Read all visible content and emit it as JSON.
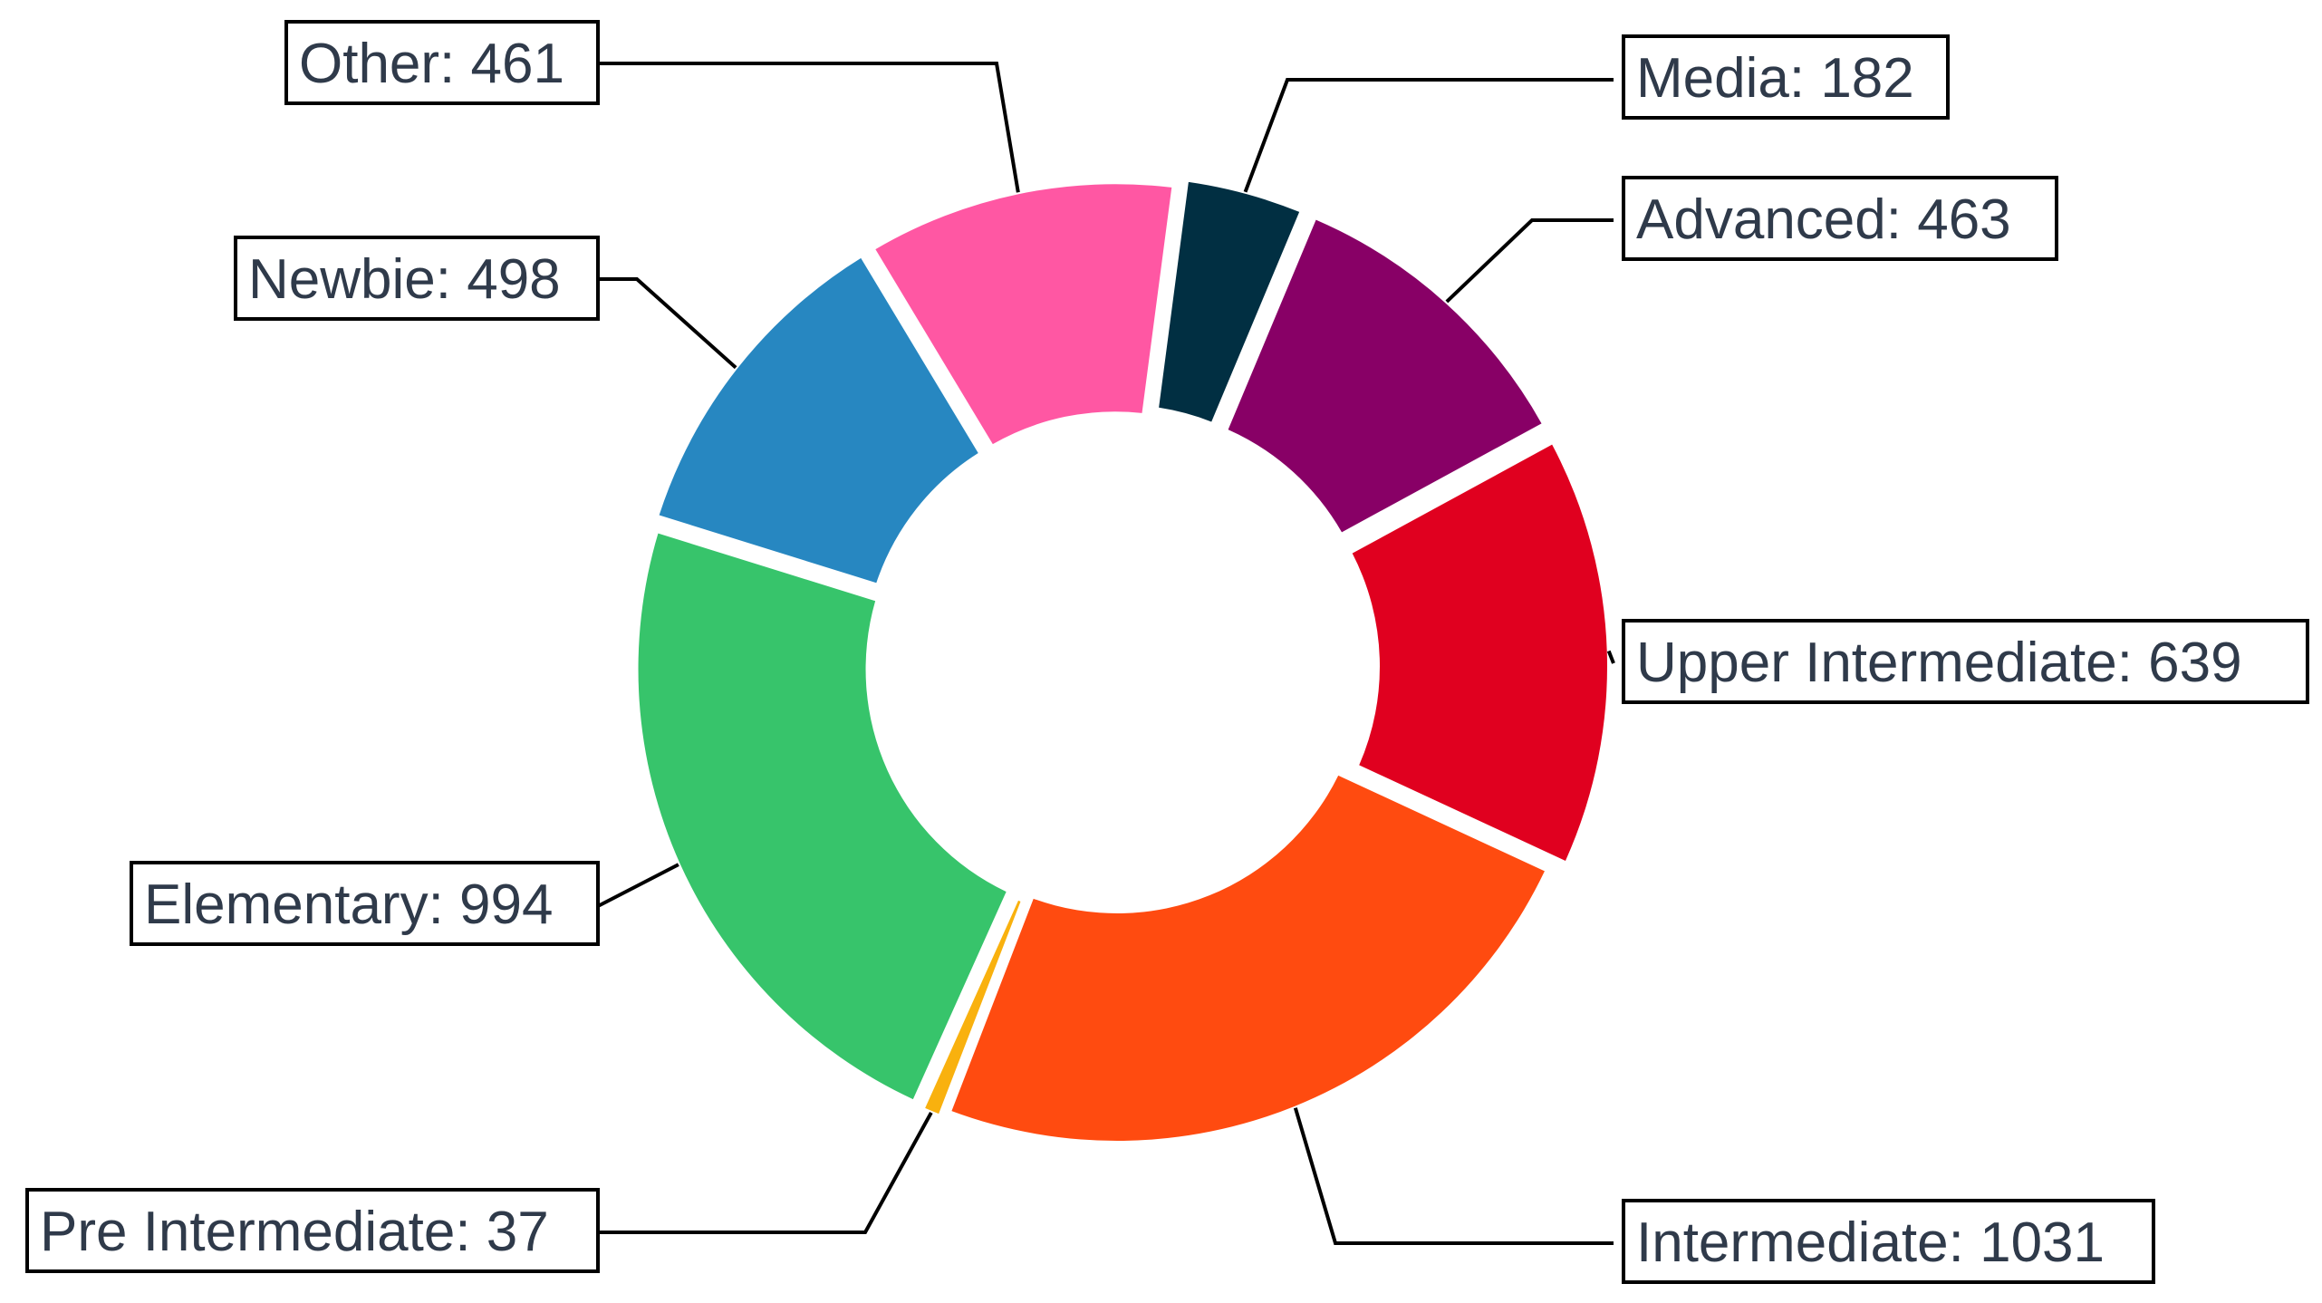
{
  "chart_data": {
    "type": "pie",
    "donut": true,
    "title": "",
    "legend": "none",
    "slices": [
      {
        "name": "Media",
        "value": 182,
        "label": "Media: 182",
        "color": "#012f42"
      },
      {
        "name": "Advanced",
        "value": 463,
        "label": "Advanced: 463",
        "color": "#880066"
      },
      {
        "name": "Upper Intermediate",
        "value": 639,
        "label": "Upper Intermediate: 639",
        "color": "#e0001f"
      },
      {
        "name": "Intermediate",
        "value": 1031,
        "label": "Intermediate: 1031",
        "color": "#ff4b10"
      },
      {
        "name": "Pre Intermediate",
        "value": 37,
        "label": "Pre Intermediate: 37",
        "color": "#f9b10e"
      },
      {
        "name": "Elementary",
        "value": 994,
        "label": "Elementary: 994",
        "color": "#37c46b"
      },
      {
        "name": "Newbie",
        "value": 498,
        "label": "Newbie: 498",
        "color": "#2787c1"
      },
      {
        "name": "Other",
        "value": 461,
        "label": "Other: 461",
        "color": "#ff57a3"
      }
    ]
  }
}
